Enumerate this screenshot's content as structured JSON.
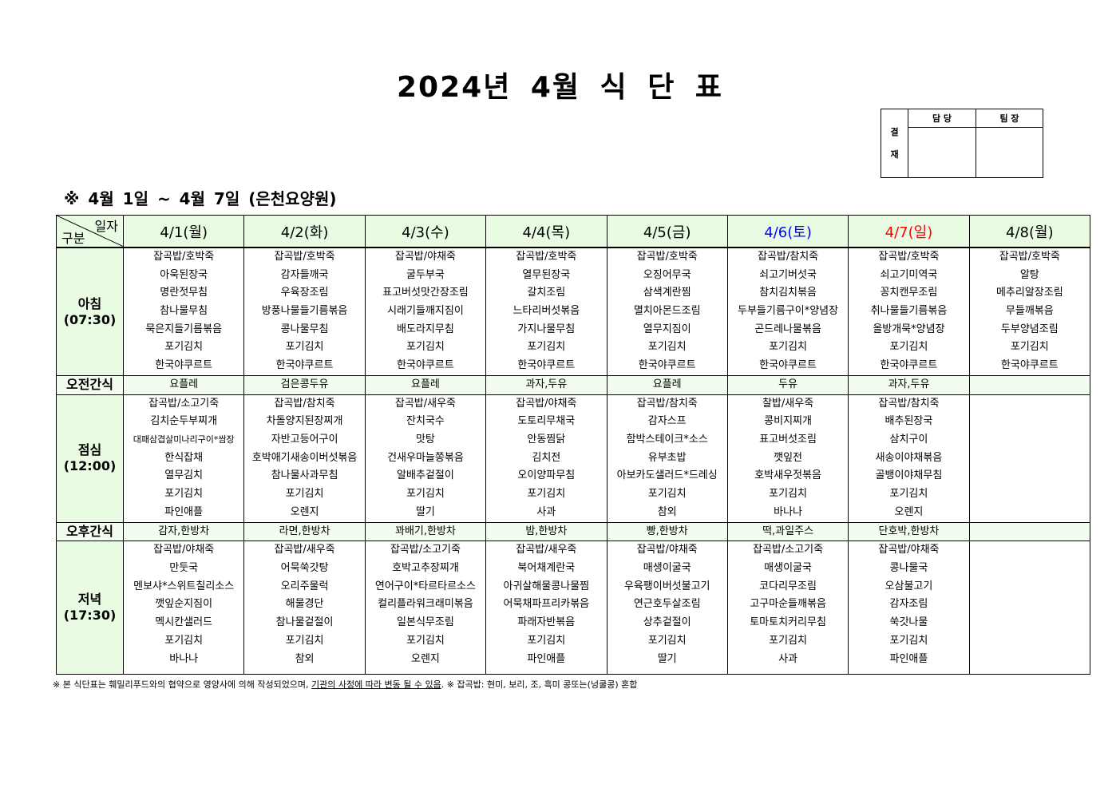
{
  "title": "2024년 4월 식 단 표",
  "approval": {
    "label": "결\n재",
    "label_top": "결",
    "label_bottom": "재",
    "col1": "담 당",
    "col2": "팀 장"
  },
  "subtitle": "※  4월 1일  ~  4월 7일 (은천요양원)",
  "corner": {
    "top": "일자",
    "bottom": "구분"
  },
  "colors": {
    "header_bg": "#e9fbe2",
    "saturday": "#0000ff",
    "sunday": "#ff0000"
  },
  "days": [
    {
      "label": "4/1(월)",
      "color": "#000000"
    },
    {
      "label": "4/2(화)",
      "color": "#000000"
    },
    {
      "label": "4/3(수)",
      "color": "#000000"
    },
    {
      "label": "4/4(목)",
      "color": "#000000"
    },
    {
      "label": "4/5(금)",
      "color": "#000000"
    },
    {
      "label": "4/6(토)",
      "color": "#0000ff"
    },
    {
      "label": "4/7(일)",
      "color": "#ff0000"
    },
    {
      "label": "4/8(월)",
      "color": "#000000"
    }
  ],
  "meals": [
    {
      "name": "아침",
      "time": "(07:30)",
      "type": "meal",
      "items": [
        [
          "잡곡밥/호박죽",
          "아욱된장국",
          "명란젓무침",
          "참나물무침",
          "묵은지들기름볶음",
          "포기김치",
          "한국야쿠르트"
        ],
        [
          "잡곡밥/호박죽",
          "감자들깨국",
          "우육장조림",
          "방풍나물들기름볶음",
          "콩나물무침",
          "포기김치",
          "한국야쿠르트"
        ],
        [
          "잡곡밥/야채죽",
          "굴두부국",
          "표고버섯맛간장조림",
          "시래기들깨지짐이",
          "배도라지무침",
          "포기김치",
          "한국야쿠르트"
        ],
        [
          "잡곡밥/호박죽",
          "열무된장국",
          "갈치조림",
          "느타리버섯볶음",
          "가지나물무침",
          "포기김치",
          "한국야쿠르트"
        ],
        [
          "잡곡밥/호박죽",
          "오징어무국",
          "삼색계란찜",
          "멸치아몬드조림",
          "열무지짐이",
          "포기김치",
          "한국야쿠르트"
        ],
        [
          "잡곡밥/참치죽",
          "쇠고기버섯국",
          "참치김치볶음",
          "두부들기름구이*양념장",
          "곤드레나물볶음",
          "포기김치",
          "한국야쿠르트"
        ],
        [
          "잡곡밥/호박죽",
          "쇠고기미역국",
          "꽁치캔무조림",
          "취나물들기름볶음",
          "올방개묵*양념장",
          "포기김치",
          "한국야쿠르트"
        ],
        [
          "잡곡밥/호박죽",
          "알탕",
          "메추리알장조림",
          "무들깨볶음",
          "두부양념조림",
          "포기김치",
          "한국야쿠르트"
        ]
      ]
    },
    {
      "name": "오전간식",
      "time": "",
      "type": "snack",
      "items": [
        [
          "요플레"
        ],
        [
          "검은콩두유"
        ],
        [
          "요플레"
        ],
        [
          "과자,두유"
        ],
        [
          "요플레"
        ],
        [
          "두유"
        ],
        [
          "과자,두유"
        ],
        [
          ""
        ]
      ]
    },
    {
      "name": "점심",
      "time": "(12:00)",
      "type": "meal",
      "items": [
        [
          "잡곡밥/소고기죽",
          "김치순두부찌개",
          "대패삼겹살미나리구이*쌈장",
          "한식잡채",
          "열무김치",
          "포기김치",
          "파인애플"
        ],
        [
          "잡곡밥/참치죽",
          "차돌양지된장찌개",
          "자반고등어구이",
          "호박애기새송이버섯볶음",
          "참나물사과무침",
          "포기김치",
          "오렌지"
        ],
        [
          "잡곡밥/새우죽",
          "잔치국수",
          "맛탕",
          "건새우마늘쫑볶음",
          "알배추겉절이",
          "포기김치",
          "딸기"
        ],
        [
          "잡곡밥/야채죽",
          "도토리무채국",
          "안동찜닭",
          "김치전",
          "오이양파무침",
          "포기김치",
          "사과"
        ],
        [
          "잡곡밥/참치죽",
          "감자스프",
          "함박스테이크*소스",
          "유부초밥",
          "아보카도샐러드*드레싱",
          "포기김치",
          "참외"
        ],
        [
          "찰밥/새우죽",
          "콩비지찌개",
          "표고버섯조림",
          "깻잎전",
          "호박새우젓볶음",
          "포기김치",
          "바나나"
        ],
        [
          "잡곡밥/참치죽",
          "배추된장국",
          "삼치구이",
          "새송이야채볶음",
          "골뱅이야채무침",
          "포기김치",
          "오렌지"
        ],
        []
      ]
    },
    {
      "name": "오후간식",
      "time": "",
      "type": "snack",
      "items": [
        [
          "감자,한방차"
        ],
        [
          "라면,한방차"
        ],
        [
          "꽈배기,한방차"
        ],
        [
          "밤,한방차"
        ],
        [
          "빵,한방차"
        ],
        [
          "떡,과일주스"
        ],
        [
          "단호박,한방차"
        ],
        [
          ""
        ]
      ]
    },
    {
      "name": "저녁",
      "time": "(17:30)",
      "type": "meal",
      "items": [
        [
          "잡곡밥/야채죽",
          "만둣국",
          "멘보샤*스위트칠리소스",
          "깻잎순지짐이",
          "멕시칸샐러드",
          "포기김치",
          "바나나"
        ],
        [
          "잡곡밥/새우죽",
          "어묵쑥갓탕",
          "오리주물럭",
          "해물경단",
          "참나물겉절이",
          "포기김치",
          "참외"
        ],
        [
          "잡곡밥/소고기죽",
          "호박고추장찌개",
          "연어구이*타르타르소스",
          "컬리플라워크래미볶음",
          "일본식무조림",
          "포기김치",
          "오렌지"
        ],
        [
          "잡곡밥/새우죽",
          "북어채계란국",
          "아귀살해물콩나물찜",
          "어묵채파프리카볶음",
          "파래자반볶음",
          "포기김치",
          "파인애플"
        ],
        [
          "잡곡밥/야채죽",
          "매생이굴국",
          "우육팽이버섯불고기",
          "연근호두살조림",
          "상추겉절이",
          "포기김치",
          "딸기"
        ],
        [
          "잡곡밥/소고기죽",
          "매생이굴국",
          "코다리무조림",
          "고구마순들깨볶음",
          "토마토치커리무침",
          "포기김치",
          "사과"
        ],
        [
          "잡곡밥/야채죽",
          "콩나물국",
          "오삼불고기",
          "감자조림",
          "쑥갓나물",
          "포기김치",
          "파인애플"
        ],
        []
      ]
    }
  ],
  "footer": {
    "part1": "※ 본 식단표는 훼밀리푸드와의 협약으로 영양사에 의해 작성되었으며, ",
    "underlined": "기관의 사정에 따라 변동 될 수 있음",
    "part2": ". ※ 잡곡밥: 현미, 보리, 조, 흑미 콩또는(넝쿨콩) 혼합"
  }
}
